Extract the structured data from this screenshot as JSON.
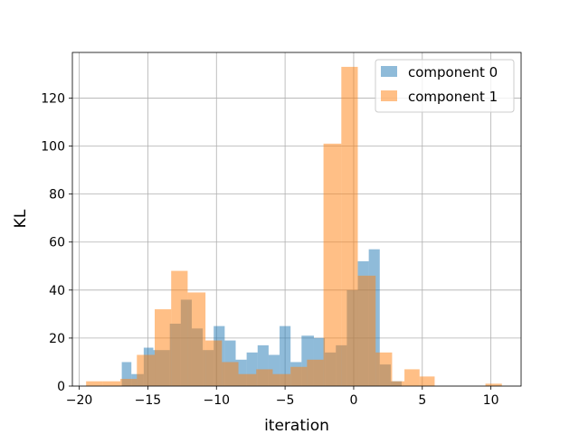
{
  "chart_data": {
    "type": "bar",
    "subtype": "histogram",
    "title": "",
    "xlabel": "iteration",
    "ylabel": "KL",
    "xlim": [
      -20.5,
      12.2
    ],
    "ylim": [
      0,
      139
    ],
    "xticks": [
      -20,
      -15,
      -10,
      -5,
      0,
      5,
      10
    ],
    "yticks": [
      0,
      20,
      40,
      60,
      80,
      100,
      120
    ],
    "grid": true,
    "legend_position": "top-right",
    "series": [
      {
        "name": "component 0",
        "color": "#1f77b4",
        "opacity": 0.5,
        "bins": [
          {
            "x0": -16.9,
            "x1": -16.2,
            "value": 10
          },
          {
            "x0": -16.2,
            "x1": -15.3,
            "value": 5
          },
          {
            "x0": -15.3,
            "x1": -14.6,
            "value": 16
          },
          {
            "x0": -14.6,
            "x1": -13.4,
            "value": 15
          },
          {
            "x0": -13.4,
            "x1": -12.6,
            "value": 26
          },
          {
            "x0": -12.6,
            "x1": -11.8,
            "value": 36
          },
          {
            "x0": -11.8,
            "x1": -11.0,
            "value": 24
          },
          {
            "x0": -11.0,
            "x1": -10.2,
            "value": 15
          },
          {
            "x0": -10.2,
            "x1": -9.4,
            "value": 25
          },
          {
            "x0": -9.4,
            "x1": -8.6,
            "value": 19
          },
          {
            "x0": -8.6,
            "x1": -7.8,
            "value": 11
          },
          {
            "x0": -7.8,
            "x1": -7.0,
            "value": 14
          },
          {
            "x0": -7.0,
            "x1": -6.2,
            "value": 17
          },
          {
            "x0": -6.2,
            "x1": -5.4,
            "value": 13
          },
          {
            "x0": -5.4,
            "x1": -4.6,
            "value": 25
          },
          {
            "x0": -4.6,
            "x1": -3.8,
            "value": 10
          },
          {
            "x0": -3.8,
            "x1": -2.9,
            "value": 21
          },
          {
            "x0": -2.9,
            "x1": -2.1,
            "value": 20
          },
          {
            "x0": -2.1,
            "x1": -1.3,
            "value": 14
          },
          {
            "x0": -1.3,
            "x1": -0.5,
            "value": 17
          },
          {
            "x0": -0.5,
            "x1": 0.3,
            "value": 40
          },
          {
            "x0": 0.3,
            "x1": 1.1,
            "value": 52
          },
          {
            "x0": 1.1,
            "x1": 1.9,
            "value": 57
          },
          {
            "x0": 1.9,
            "x1": 2.7,
            "value": 9
          },
          {
            "x0": 2.7,
            "x1": 3.5,
            "value": 2
          }
        ]
      },
      {
        "name": "component 1",
        "color": "#ff7f0e",
        "opacity": 0.5,
        "bins": [
          {
            "x0": -19.5,
            "x1": -18.3,
            "value": 2
          },
          {
            "x0": -18.3,
            "x1": -17.0,
            "value": 2
          },
          {
            "x0": -17.0,
            "x1": -15.8,
            "value": 3
          },
          {
            "x0": -15.8,
            "x1": -14.5,
            "value": 13
          },
          {
            "x0": -14.5,
            "x1": -13.3,
            "value": 32
          },
          {
            "x0": -13.3,
            "x1": -12.1,
            "value": 48
          },
          {
            "x0": -12.1,
            "x1": -10.8,
            "value": 39
          },
          {
            "x0": -10.8,
            "x1": -9.6,
            "value": 19
          },
          {
            "x0": -9.6,
            "x1": -8.4,
            "value": 10
          },
          {
            "x0": -8.4,
            "x1": -7.1,
            "value": 5
          },
          {
            "x0": -7.1,
            "x1": -5.9,
            "value": 7
          },
          {
            "x0": -5.9,
            "x1": -4.6,
            "value": 5
          },
          {
            "x0": -4.6,
            "x1": -3.4,
            "value": 8
          },
          {
            "x0": -3.4,
            "x1": -2.2,
            "value": 11
          },
          {
            "x0": -2.2,
            "x1": -0.9,
            "value": 101
          },
          {
            "x0": -0.9,
            "x1": 0.3,
            "value": 133
          },
          {
            "x0": 0.3,
            "x1": 1.6,
            "value": 46
          },
          {
            "x0": 1.6,
            "x1": 2.8,
            "value": 14
          },
          {
            "x0": 2.8,
            "x1": 3.7,
            "value": 2
          },
          {
            "x0": 3.7,
            "x1": 4.8,
            "value": 7
          },
          {
            "x0": 4.8,
            "x1": 5.9,
            "value": 4
          },
          {
            "x0": 9.6,
            "x1": 10.8,
            "value": 1
          }
        ]
      }
    ]
  }
}
